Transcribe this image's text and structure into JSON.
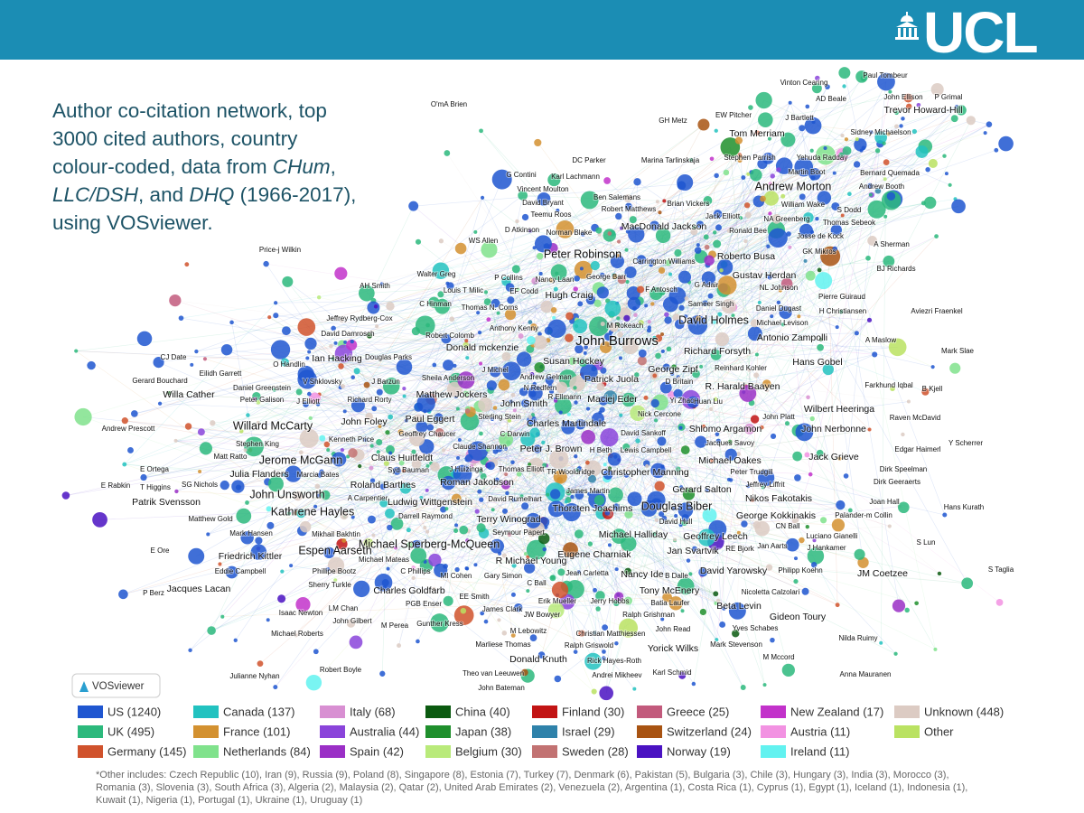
{
  "header": {
    "logo": "UCL"
  },
  "title_lines": [
    [
      "Author co-citation network, top"
    ],
    [
      "3000 cited authors, country"
    ],
    [
      "colour-coded, data from ",
      "CHum",
      ","
    ],
    [
      "LLC/DSH",
      ", and ",
      "DHQ",
      " (1966-2017),"
    ],
    [
      "using VOSviewer."
    ]
  ],
  "badge": "VOSviewer",
  "legend": [
    {
      "label": "US (1240)",
      "color": "#1f56d0"
    },
    {
      "label": "UK (495)",
      "color": "#2cb97c"
    },
    {
      "label": "Germany (145)",
      "color": "#d0522c"
    },
    {
      "label": "Canada (137)",
      "color": "#22c2c0"
    },
    {
      "label": "France (101)",
      "color": "#d39130"
    },
    {
      "label": "Netherlands (84)",
      "color": "#80e28c"
    },
    {
      "label": "Italy (68)",
      "color": "#d88fd2"
    },
    {
      "label": "Australia (44)",
      "color": "#8a44da"
    },
    {
      "label": "Spain (42)",
      "color": "#9a2fc6"
    },
    {
      "label": "China (40)",
      "color": "#0b5a10"
    },
    {
      "label": "Japan (38)",
      "color": "#1f8f2c"
    },
    {
      "label": "Belgium (30)",
      "color": "#b9ea7a"
    },
    {
      "label": "Finland (30)",
      "color": "#c21414"
    },
    {
      "label": "Israel (29)",
      "color": "#2f82aa"
    },
    {
      "label": "Sweden (28)",
      "color": "#c27272"
    },
    {
      "label": "Greece (25)",
      "color": "#c25a7c"
    },
    {
      "label": "Switzerland (24)",
      "color": "#a85312"
    },
    {
      "label": "Norway (19)",
      "color": "#4a12c2"
    },
    {
      "label": "New Zealand (17)",
      "color": "#c232ca"
    },
    {
      "label": "Austria (11)",
      "color": "#f292e2"
    },
    {
      "label": "Ireland (11)",
      "color": "#62f2f0"
    },
    {
      "label": "Unknown (448)",
      "color": "#dccbc3"
    },
    {
      "label": "Other",
      "color": "#bae262"
    }
  ],
  "footnote": [
    "*Other includes: Czech Republic (10), Iran (9), Russia (9), Poland (8), Singapore (8), Estonia (7), Turkey (7), Denmark (6), Pakistan (5), Bulgaria (3), Chile (3), Hungary (3), India (3), Morocco (3),",
    "Romania (3), Slovenia (3), South Africa (3), Algeria (2), Malaysia (2), Qatar (2), United Arab Emirates (2), Venezuela (2), Argentina (1), Costa Rica (1), Cyprus (1), Egypt (1), Iceland (1), Indonesia (1),",
    "Kuwait (1), Nigeria (1), Portugal (1), Ukraine (1), Uruguay (1)"
  ],
  "nodes": [
    "O'mA Brien",
    "Vinton Cearing",
    "Paul Tombeur",
    "AD Beale",
    "John Ellison",
    "P Grimal",
    "Trevor Howard-Hill",
    "GH Metz",
    "EW Pitcher",
    "J Bartlett",
    "Tom Merriam",
    "Sidney Michaelson",
    "DC Parker",
    "Marina Tarlinskaja",
    "Stephen Parrish",
    "Yehuda Radday",
    "Martin Boot",
    "Bernard Quemada",
    "G Contini",
    "Karl Lachmann",
    "Andrew Morton",
    "Andrew Booth",
    "Vincent Moulton",
    "Ben Salemans",
    "David Bryant",
    "Robert Matthews",
    "Brian Vickers",
    "William Wake",
    "S Dodd",
    "Teemu Roos",
    "Jack Elliott",
    "NA Greenberg",
    "Thomas Sebeok",
    "MacDonald Jackson",
    "D Atkinson",
    "Norman Blake",
    "Ronald Bee",
    "Josse de Kock",
    "WS Allen",
    "A Sherman",
    "Price-j Wilkin",
    "Peter Robinson",
    "Carrington Williams",
    "Roberto Busa",
    "GK Mikros",
    "BJ Richards",
    "Walter Greg",
    "P Collins",
    "George Barr",
    "Gustav Herdan",
    "AH Smith",
    "Nancy Laan",
    "Louis T Milic",
    "EF Codd",
    "F Antosch",
    "G Adair",
    "NL Johnson",
    "Hugh Craig",
    "C Hinman",
    "Pierre Guiraud",
    "Thomas N. Corns",
    "Sameer Singh",
    "H Christiansen",
    "Daniel Dugast",
    "Aviezri Fraenkel",
    "Jeffrey Rydberg-Cox",
    "Anthony Kenny",
    "M Rokeach",
    "David Holmes",
    "Michael Levison",
    "David Damrosch",
    "Robert Colomb",
    "Antonio Zampolli",
    "A Maslow",
    "John Burrows",
    "Donald mckenzie",
    "Mark Slae",
    "Richard Forsyth",
    "CJ Date",
    "Ian Hacking",
    "Douglas Parks",
    "Susan Hockey",
    "Hans Gobel",
    "O Handlin",
    "J Michel",
    "George Zipf",
    "Reinhard Kohler",
    "Eilidh Garrett",
    "V Shklovsky",
    "J Barzun",
    "Sheila Anderson",
    "Andrew Gelman",
    "Patrick Juola",
    "D Britain",
    "Farkhund Iqbal",
    "Gerard Bouchard",
    "R. Harald Baayen",
    "Daniel Greenstein",
    "N Redfern",
    "B Kjell",
    "Willa Cather",
    "Matthew Jockers",
    "Peter Galison",
    "J Elliott",
    "Richard Rorty",
    "R Ellmann",
    "Maciej Eder",
    "Yi Zhao",
    "Huan Liu",
    "John Smith",
    "Wilbert Heeringa",
    "Nick Cercone",
    "Sterling Stein",
    "Paul Eggert",
    "John Platt",
    "Raven McDavid",
    "Willard McCarty",
    "John Foley",
    "Charles Martindale",
    "Shlomo Argamon",
    "John Nerbonne",
    "Andrew Prescott",
    "Geoffrey Chaucer",
    "C Darwin",
    "David Sankoff",
    "Kenneth Price",
    "Jacques Savoy",
    "Y Scherrer",
    "Stephen King",
    "Claude Shannon",
    "Peter J. Brown",
    "H Beth",
    "Lewis Campbell",
    "Edgar Haimerl",
    "Claus Huitfeldt",
    "Matt Ratto",
    "Jerome McGann",
    "Michael Oakes",
    "Jack Grieve",
    "E Ortega",
    "J Huizinga",
    "Thomas Elliott",
    "TR Wooldridge",
    "Christopher Manning",
    "Peter Trudgill",
    "Dirk Speelman",
    "Julia Flanders",
    "Marcia Bates",
    "Syd Bauman",
    "Roman Jakobson",
    "Jeffrey Liffrit",
    "Dirk Geeraerts",
    "E Rabkin",
    "T Higgins",
    "SG Nichols",
    "Roland Barthes",
    "Gerard Salton",
    "John Unsworth",
    "A Carpentier",
    "Ludwig Wittgenstein",
    "David Rumelhart",
    "James Martin",
    "Nikos Fakotakis",
    "Patrik Svensson",
    "Joan Hall",
    "Thorsten Joachims",
    "Douglas Biber",
    "Hans Kurath",
    "Kathrene Hayles",
    "Darrell Raymond",
    "George Kokkinakis",
    "Palander-m Collin",
    "Matthew Gold",
    "Terry Winograd",
    "David Hull",
    "CN Ball",
    "Seymour Papert",
    "Mark Hansen",
    "Mikhail Bakhtin",
    "Michael Halliday",
    "Geoffrey Leech",
    "Luciano Gianelli",
    "Michael Sperberg-McQueen",
    "Espen Aarseth",
    "Jan Svartvik",
    "RE Bjork",
    "Jan Aarts",
    "J Hankamer",
    "S Lun",
    "E Ore",
    "Eugene Charniak",
    "Friedrich Kittler",
    "Michael Mateas",
    "R Michael Young",
    "David Yarowsky",
    "Philipp Koehn",
    "JM Coetzee",
    "S Taglia",
    "Eddie Campbell",
    "Phillipe Bootz",
    "C Phillips",
    "Jean Carletta",
    "Nancy Ide",
    "B Dalle",
    "MI Cohen",
    "Gary Simon",
    "Sherry Turkle",
    "Charles Goldfarb",
    "C Ball",
    "Jacques Lacan",
    "Tony McEnery",
    "Nicoletta Calzolari",
    "P Berz",
    "EE Smith",
    "Erik Mueller",
    "Jerry Hobbs",
    "Batia Laufer",
    "Beta Levin",
    "PGB Enser",
    "James Clark",
    "Isaac Newton",
    "LM Chan",
    "JW Bowyer",
    "Ralph Grishman",
    "Gideon Toury",
    "John Gilbert",
    "M Perea",
    "Gunther Kress",
    "Yves Schabes",
    "Michael Roberts",
    "M Lebowitz",
    "Christian Matthiessen",
    "John Read",
    "Nilda Ruimy",
    "Marliese Thomas",
    "Ralph Griswold",
    "Yorick Wilks",
    "Mark Stevenson",
    "M Mccord",
    "Donald Knuth",
    "Rick Hayes-Roth",
    "Robert Boyle",
    "Theo van Leeuwen",
    "Andrei Mikheev",
    "Karl Schmid",
    "Julianne Nyhan",
    "Anna Mauranen",
    "John Bateman"
  ]
}
